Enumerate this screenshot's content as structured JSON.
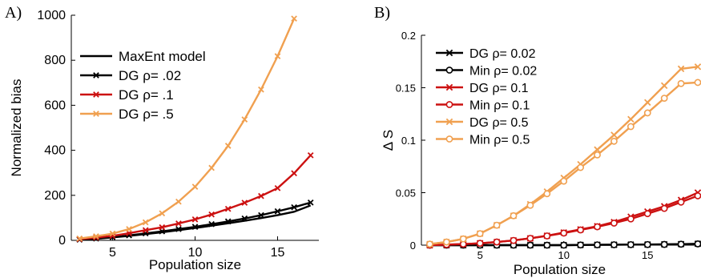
{
  "panels": [
    {
      "panel_label": "A)",
      "chart_data": {
        "type": "line",
        "xlabel": "Population size",
        "ylabel": "Normalized bias",
        "xlim": [
          2.5,
          17.5
        ],
        "ylim": [
          0,
          1000
        ],
        "xticks": [
          5,
          10,
          15
        ],
        "yticks": [
          0,
          200,
          400,
          600,
          800,
          1000
        ],
        "legend_position": "top-left",
        "series": [
          {
            "name": "MaxEnt model",
            "color": "#000000",
            "marker": "none",
            "x": [
              3,
              4,
              5,
              6,
              7,
              8,
              9,
              10,
              11,
              12,
              13,
              14,
              15,
              16,
              17
            ],
            "values": [
              2,
              7,
              13,
              20,
              28,
              36,
              45,
              55,
              65,
              76,
              87,
              99,
              112,
              127,
              155
            ]
          },
          {
            "name": "DG ρ= .02",
            "color": "#000000",
            "marker": "x",
            "x": [
              3,
              4,
              5,
              6,
              7,
              8,
              9,
              10,
              11,
              12,
              13,
              14,
              15,
              16,
              17
            ],
            "values": [
              3,
              8,
              14,
              22,
              31,
              40,
              50,
              60,
              72,
              84,
              97,
              112,
              129,
              147,
              168
            ]
          },
          {
            "name": "DG ρ= .1",
            "color": "#cc1111",
            "marker": "x",
            "x": [
              3,
              4,
              5,
              6,
              7,
              8,
              9,
              10,
              11,
              12,
              13,
              14,
              15,
              16,
              17
            ],
            "values": [
              5,
              12,
              20,
              32,
              45,
              58,
              75,
              93,
              115,
              140,
              167,
              197,
              232,
              298,
              378
            ]
          },
          {
            "name": "DG ρ= .5",
            "color": "#f0a050",
            "marker": "x",
            "x": [
              3,
              4,
              5,
              6,
              7,
              8,
              9,
              10,
              11,
              12,
              13,
              14,
              15,
              16
            ],
            "values": [
              8,
              18,
              30,
              50,
              80,
              120,
              172,
              238,
              322,
              420,
              537,
              670,
              818,
              985
            ]
          }
        ]
      }
    },
    {
      "panel_label": "B)",
      "chart_data": {
        "type": "line",
        "xlabel": "Population size",
        "ylabel": "Δ S",
        "xlim": [
          1.5,
          18
        ],
        "ylim": [
          0,
          0.2
        ],
        "xticks": [
          5,
          10,
          15
        ],
        "yticks": [
          0,
          0.05,
          0.1,
          0.15,
          0.2
        ],
        "ytick_labels": [
          "0",
          "0.05",
          "0.1",
          "0.15",
          "0.2"
        ],
        "legend_position": "top-left",
        "series": [
          {
            "name": "DG ρ= 0.02",
            "color": "#000000",
            "marker": "x",
            "x": [
              2,
              3,
              4,
              5,
              6,
              7,
              8,
              9,
              10,
              11,
              12,
              13,
              14,
              15,
              16,
              17,
              18
            ],
            "values": [
              0,
              0,
              0,
              0,
              0,
              0,
              0,
              0,
              0,
              0.0002,
              0.0003,
              0.0004,
              0.0005,
              0.0006,
              0.0008,
              0.001,
              0.0013
            ]
          },
          {
            "name": "Min ρ= 0.02",
            "color": "#000000",
            "marker": "o",
            "x": [
              2,
              3,
              4,
              5,
              6,
              7,
              8,
              9,
              10,
              11,
              12,
              13,
              14,
              15,
              16,
              17,
              18
            ],
            "values": [
              0,
              0,
              0,
              0,
              0,
              0,
              0,
              0,
              0,
              0.0002,
              0.0003,
              0.0004,
              0.0005,
              0.0006,
              0.0007,
              0.0009,
              0.0012
            ]
          },
          {
            "name": "DG ρ= 0.1",
            "color": "#cc1111",
            "marker": "x",
            "x": [
              2,
              3,
              4,
              5,
              6,
              7,
              8,
              9,
              10,
              11,
              12,
              13,
              14,
              15,
              16,
              17,
              18
            ],
            "values": [
              0,
              0.0005,
              0.001,
              0.0018,
              0.003,
              0.0045,
              0.0065,
              0.009,
              0.012,
              0.015,
              0.018,
              0.022,
              0.027,
              0.032,
              0.037,
              0.043,
              0.05
            ]
          },
          {
            "name": "Min ρ= 0.1",
            "color": "#cc1111",
            "marker": "o",
            "x": [
              2,
              3,
              4,
              5,
              6,
              7,
              8,
              9,
              10,
              11,
              12,
              13,
              14,
              15,
              16,
              17,
              18
            ],
            "values": [
              0,
              0.0005,
              0.001,
              0.0018,
              0.003,
              0.0045,
              0.0065,
              0.0088,
              0.0115,
              0.0145,
              0.0175,
              0.021,
              0.025,
              0.03,
              0.035,
              0.041,
              0.047
            ]
          },
          {
            "name": "DG ρ= 0.5",
            "color": "#f0a050",
            "marker": "x",
            "x": [
              2,
              3,
              4,
              5,
              6,
              7,
              8,
              9,
              10,
              11,
              12,
              13,
              14,
              15,
              16,
              17,
              18
            ],
            "values": [
              0.001,
              0.003,
              0.006,
              0.011,
              0.019,
              0.028,
              0.039,
              0.051,
              0.064,
              0.077,
              0.091,
              0.105,
              0.12,
              0.136,
              0.152,
              0.168,
              0.17
            ]
          },
          {
            "name": "Min ρ= 0.5",
            "color": "#f0a050",
            "marker": "o",
            "x": [
              2,
              3,
              4,
              5,
              6,
              7,
              8,
              9,
              10,
              11,
              12,
              13,
              14,
              15,
              16,
              17,
              18
            ],
            "values": [
              0.001,
              0.003,
              0.006,
              0.011,
              0.019,
              0.028,
              0.038,
              0.049,
              0.061,
              0.074,
              0.086,
              0.099,
              0.113,
              0.126,
              0.14,
              0.154,
              0.155
            ]
          }
        ]
      }
    }
  ]
}
